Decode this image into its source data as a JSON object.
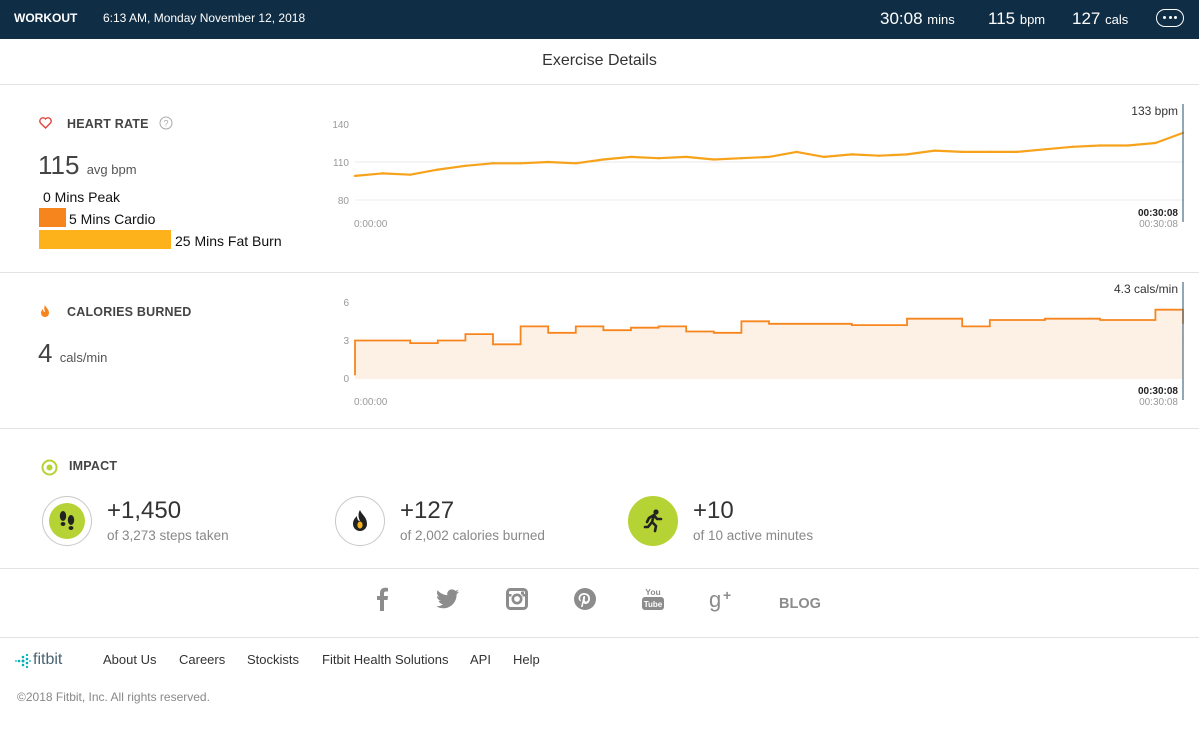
{
  "header": {
    "workout_label": "WORKOUT",
    "datetime": "6:13 AM, Monday November 12, 2018",
    "duration_value": "30:08",
    "duration_unit": "mins",
    "bpm_value": "115",
    "bpm_unit": "bpm",
    "cals_value": "127",
    "cals_unit": "cals",
    "more_icon": "ellipsis-icon",
    "bg_color": "#0f2d44"
  },
  "page_title": "Exercise Details",
  "heart_rate": {
    "label": "HEART RATE",
    "help_icon": "question-icon",
    "avg_value": "115",
    "avg_unit": "avg bpm",
    "zones": [
      {
        "label": "0 Mins Peak",
        "minutes": 0,
        "color": "#e0453c"
      },
      {
        "label": "5 Mins Cardio",
        "minutes": 5,
        "color": "#f7851e"
      },
      {
        "label": "25 Mins Fat Burn",
        "minutes": 25,
        "color": "#fdb21b"
      }
    ],
    "current_label": "133 bpm",
    "y_ticks": [
      "140",
      "110",
      "80"
    ],
    "x_start": "0:00:00",
    "x_end_bold": "00:30:08",
    "x_end": "00:30:08"
  },
  "calories": {
    "label": "CALORIES BURNED",
    "value": "4",
    "unit": "cals/min",
    "current_label": "4.3 cals/min",
    "y_ticks": [
      "6",
      "3",
      "0"
    ],
    "x_start": "0:00:00",
    "x_end_bold": "00:30:08",
    "x_end": "00:30:08"
  },
  "chart_data": [
    {
      "type": "line",
      "title": "HEART RATE",
      "ylabel": "bpm",
      "ylim": [
        80,
        140
      ],
      "x": [
        "0:00",
        "1:00",
        "2:00",
        "3:00",
        "4:00",
        "5:00",
        "6:00",
        "7:00",
        "8:00",
        "9:00",
        "10:00",
        "11:00",
        "12:00",
        "13:00",
        "14:00",
        "15:00",
        "16:00",
        "17:00",
        "18:00",
        "19:00",
        "20:00",
        "21:00",
        "22:00",
        "23:00",
        "24:00",
        "25:00",
        "26:00",
        "27:00",
        "28:00",
        "29:00",
        "30:08"
      ],
      "series": [
        {
          "values": [
            99,
            101,
            100,
            104,
            107,
            109,
            109,
            110,
            109,
            112,
            114,
            113,
            114,
            112,
            113,
            114,
            118,
            114,
            116,
            115,
            116,
            119,
            118,
            118,
            118,
            120,
            122,
            123,
            123,
            125,
            133
          ]
        }
      ],
      "color": "#f7a21b"
    },
    {
      "type": "area",
      "title": "CALORIES BURNED",
      "ylabel": "cals/min",
      "ylim": [
        0,
        6
      ],
      "x": [
        "0:00",
        "1:00",
        "2:00",
        "3:00",
        "4:00",
        "5:00",
        "6:00",
        "7:00",
        "8:00",
        "9:00",
        "10:00",
        "11:00",
        "12:00",
        "13:00",
        "14:00",
        "15:00",
        "16:00",
        "17:00",
        "18:00",
        "19:00",
        "20:00",
        "21:00",
        "22:00",
        "23:00",
        "24:00",
        "25:00",
        "26:00",
        "27:00",
        "28:00",
        "29:00",
        "30:08"
      ],
      "series": [
        {
          "values": [
            3.0,
            3.0,
            2.8,
            3.0,
            3.5,
            2.7,
            4.1,
            3.6,
            4.1,
            3.8,
            4.0,
            4.1,
            3.7,
            3.6,
            4.5,
            4.3,
            4.3,
            4.3,
            4.2,
            4.2,
            4.7,
            4.7,
            4.1,
            4.6,
            4.6,
            4.7,
            4.7,
            4.6,
            4.6,
            5.4,
            4.3
          ]
        }
      ],
      "color": "#f7851e"
    }
  ],
  "impact": {
    "label": "IMPACT",
    "items": [
      {
        "value": "+1,450",
        "sub": "of 3,273 steps taken",
        "icon": "footsteps-icon"
      },
      {
        "value": "+127",
        "sub": "of 2,002 calories burned",
        "icon": "flame-icon"
      },
      {
        "value": "+10",
        "sub": "of 10 active minutes",
        "icon": "runner-icon"
      }
    ]
  },
  "social": {
    "icons": [
      "facebook-icon",
      "twitter-icon",
      "instagram-icon",
      "pinterest-icon",
      "youtube-icon",
      "google-plus-icon"
    ],
    "blog_label": "BLOG"
  },
  "footer": {
    "brand": "fitbit",
    "links": [
      "About Us",
      "Careers",
      "Stockists",
      "Fitbit Health Solutions",
      "API",
      "Help"
    ],
    "copyright": "©2018 Fitbit, Inc. All rights reserved."
  }
}
